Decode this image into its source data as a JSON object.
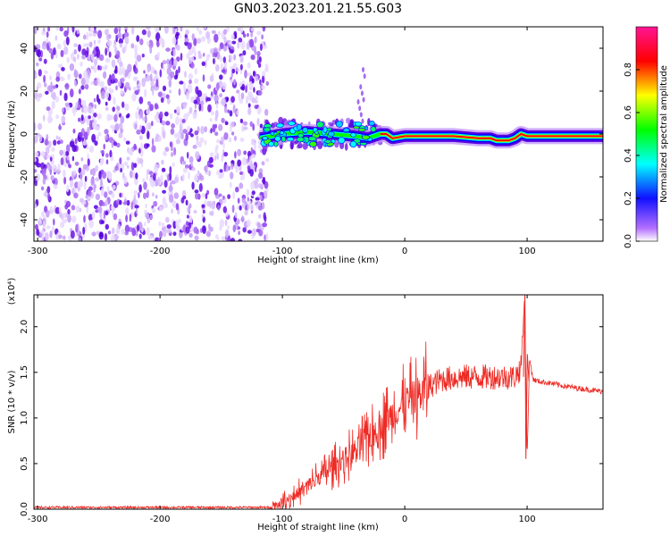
{
  "title": "GN03.2023.201.21.55.G03",
  "chart_data": [
    {
      "type": "heatmap",
      "xlabel": "Height of straight line (km)",
      "ylabel": "Frequency (Hz)",
      "xlim": [
        -303,
        162
      ],
      "ylim": [
        -50,
        50
      ],
      "xticks": [
        -300,
        -200,
        -100,
        0,
        100
      ],
      "yticks": [
        -40,
        -20,
        0,
        20,
        40
      ],
      "colorbar": {
        "label": "Normalized spectral amplitude",
        "range": [
          0.0,
          1.0
        ],
        "ticks": [
          "0.0",
          "0.2",
          "0.4",
          "0.6",
          "0.8"
        ],
        "colormap": [
          "#ffffff",
          "#9b30ff",
          "#0000ff",
          "#00ffff",
          "#00ff00",
          "#ffff00",
          "#ff0000",
          "#ff1493"
        ]
      },
      "noise_region_x": [
        -303,
        -118
      ],
      "ridge": {
        "x": [
          -118,
          -100,
          -80,
          -60,
          -40,
          -30,
          -20,
          -15,
          -10,
          0,
          20,
          40,
          60,
          70,
          75,
          80,
          85,
          90,
          95,
          100,
          130,
          162
        ],
        "freq": [
          -2,
          0,
          1,
          0,
          -1,
          -2,
          0,
          0,
          -2,
          -1,
          -1,
          -1,
          -2,
          -2,
          -3,
          -3,
          -3,
          -2,
          0,
          -1,
          -1,
          -1
        ]
      }
    },
    {
      "type": "line",
      "xlabel": "Height of straight line (km)",
      "ylabel": "SNR (10 * v/v)",
      "y_multiplier": "(x10⁴)",
      "xlim": [
        -303,
        162
      ],
      "ylim": [
        0,
        2.35
      ],
      "xticks": [
        -300,
        -200,
        -100,
        0,
        100
      ],
      "yticks": [
        "0.0",
        "0.5",
        "1.0",
        "1.5",
        "2.0"
      ],
      "series": [
        {
          "color": "#ee2a24",
          "x": [
            -303,
            -250,
            -200,
            -150,
            -110,
            -100,
            -90,
            -80,
            -70,
            -60,
            -50,
            -40,
            -30,
            -20,
            -10,
            0,
            10,
            20,
            30,
            40,
            50,
            60,
            70,
            80,
            90,
            95,
            98,
            100,
            102,
            105,
            110,
            120,
            130,
            140,
            150,
            162
          ],
          "y": [
            0.02,
            0.02,
            0.02,
            0.02,
            0.02,
            0.08,
            0.15,
            0.25,
            0.35,
            0.45,
            0.55,
            0.65,
            0.78,
            0.9,
            1.05,
            1.15,
            1.25,
            1.35,
            1.42,
            1.44,
            1.45,
            1.45,
            1.45,
            1.45,
            1.45,
            1.55,
            2.35,
            0.55,
            1.65,
            1.42,
            1.4,
            1.38,
            1.35,
            1.33,
            1.31,
            1.29
          ]
        }
      ]
    }
  ]
}
